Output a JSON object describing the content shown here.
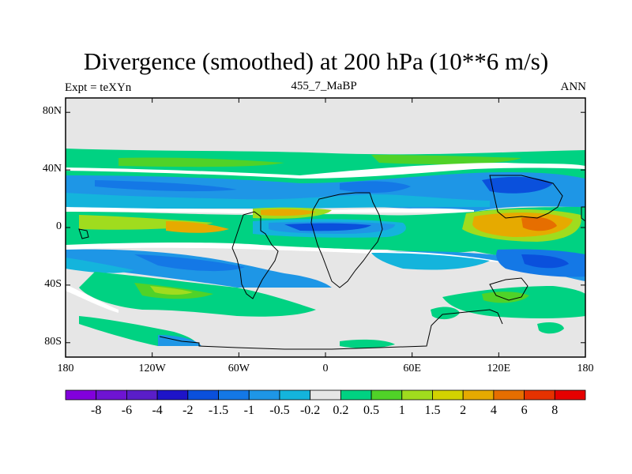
{
  "title": "Divergence (smoothed) at 200 hPa (10**6 m/s)",
  "left_label": "Expt = teXYn",
  "center_label": "455_7_MaBP",
  "right_label": "ANN",
  "lat_ticks": [
    {
      "label": "80N",
      "lat": 80
    },
    {
      "label": "40N",
      "lat": 40
    },
    {
      "label": "0",
      "lat": 0
    },
    {
      "label": "40S",
      "lat": -40
    },
    {
      "label": "80S",
      "lat": -80
    }
  ],
  "lon_ticks": [
    {
      "label": "180",
      "lon": -180
    },
    {
      "label": "120W",
      "lon": -120
    },
    {
      "label": "60W",
      "lon": -60
    },
    {
      "label": "0",
      "lon": 0
    },
    {
      "label": "60E",
      "lon": 60
    },
    {
      "label": "120E",
      "lon": 120
    },
    {
      "label": "180",
      "lon": 180
    }
  ],
  "colorbar": {
    "colors": [
      "#8200dc",
      "#6e14d2",
      "#5a1ec8",
      "#1e14c8",
      "#0a50dc",
      "#1478e6",
      "#1e96e6",
      "#14b4dc",
      "#e6e6e6",
      "#00d282",
      "#50d228",
      "#a0dc1e",
      "#d2d200",
      "#e6aa00",
      "#e66e00",
      "#e63200",
      "#e60000"
    ],
    "labels": [
      "-8",
      "-6",
      "-4",
      "-2",
      "-1.5",
      "-1",
      "-0.5",
      "-0.2",
      "0.2",
      "0.5",
      "1",
      "1.5",
      "2",
      "4",
      "6",
      "8"
    ]
  }
}
